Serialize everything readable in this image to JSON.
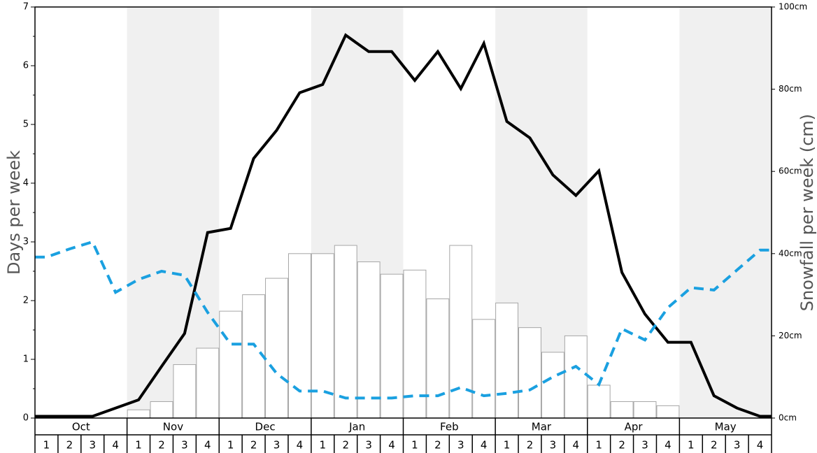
{
  "chart_data": {
    "type": "bar+line",
    "y_left_label": "Days per week",
    "y_right_label": "Snowfall per week (cm)",
    "y_left_range": [
      0,
      7
    ],
    "y_left_ticks": [
      "0",
      "1",
      "2",
      "3",
      "4",
      "5",
      "6",
      "7"
    ],
    "y_right_range": [
      0,
      100
    ],
    "y_right_ticks": [
      "0cm",
      "20cm",
      "40cm",
      "60cm",
      "80cm",
      "100cm"
    ],
    "months": [
      "Oct",
      "Nov",
      "Dec",
      "Jan",
      "Feb",
      "Mar",
      "Apr",
      "May"
    ],
    "week_labels": [
      "1",
      "2",
      "3",
      "4"
    ],
    "shaded_months": [
      "Nov",
      "Jan",
      "Mar",
      "May"
    ],
    "snowfall_bars_cm": [
      0,
      0,
      0,
      0,
      2,
      4,
      13,
      17,
      26,
      30,
      34,
      40,
      40,
      42,
      38,
      35,
      36,
      29,
      42,
      24,
      28,
      22,
      16,
      20,
      8,
      4,
      4,
      3,
      0,
      0,
      0,
      0
    ],
    "days_per_week_line": [
      0.03,
      0.03,
      0.03,
      0.17,
      0.31,
      0.88,
      1.44,
      3.16,
      3.23,
      4.42,
      4.9,
      5.54,
      5.68,
      6.52,
      6.24,
      6.24,
      5.75,
      6.24,
      5.61,
      6.38,
      5.05,
      4.77,
      4.14,
      3.79,
      4.21,
      2.48,
      1.77,
      1.29,
      1.29,
      0.38,
      0.17,
      0.03
    ],
    "dashed_line": [
      2.74,
      2.88,
      3.0,
      2.14,
      2.36,
      2.5,
      2.43,
      1.8,
      1.26,
      1.26,
      0.76,
      0.46,
      0.46,
      0.34,
      0.34,
      0.34,
      0.38,
      0.38,
      0.52,
      0.38,
      0.42,
      0.48,
      0.7,
      0.88,
      0.57,
      1.52,
      1.33,
      1.88,
      2.22,
      2.18,
      2.52,
      2.86
    ],
    "colors": {
      "line": "#000000",
      "dashed": "#1aa0e0",
      "bar_fill": "#ffffff",
      "bar_stroke": "#a6a6a6",
      "shade": "#f0f0f0"
    }
  }
}
